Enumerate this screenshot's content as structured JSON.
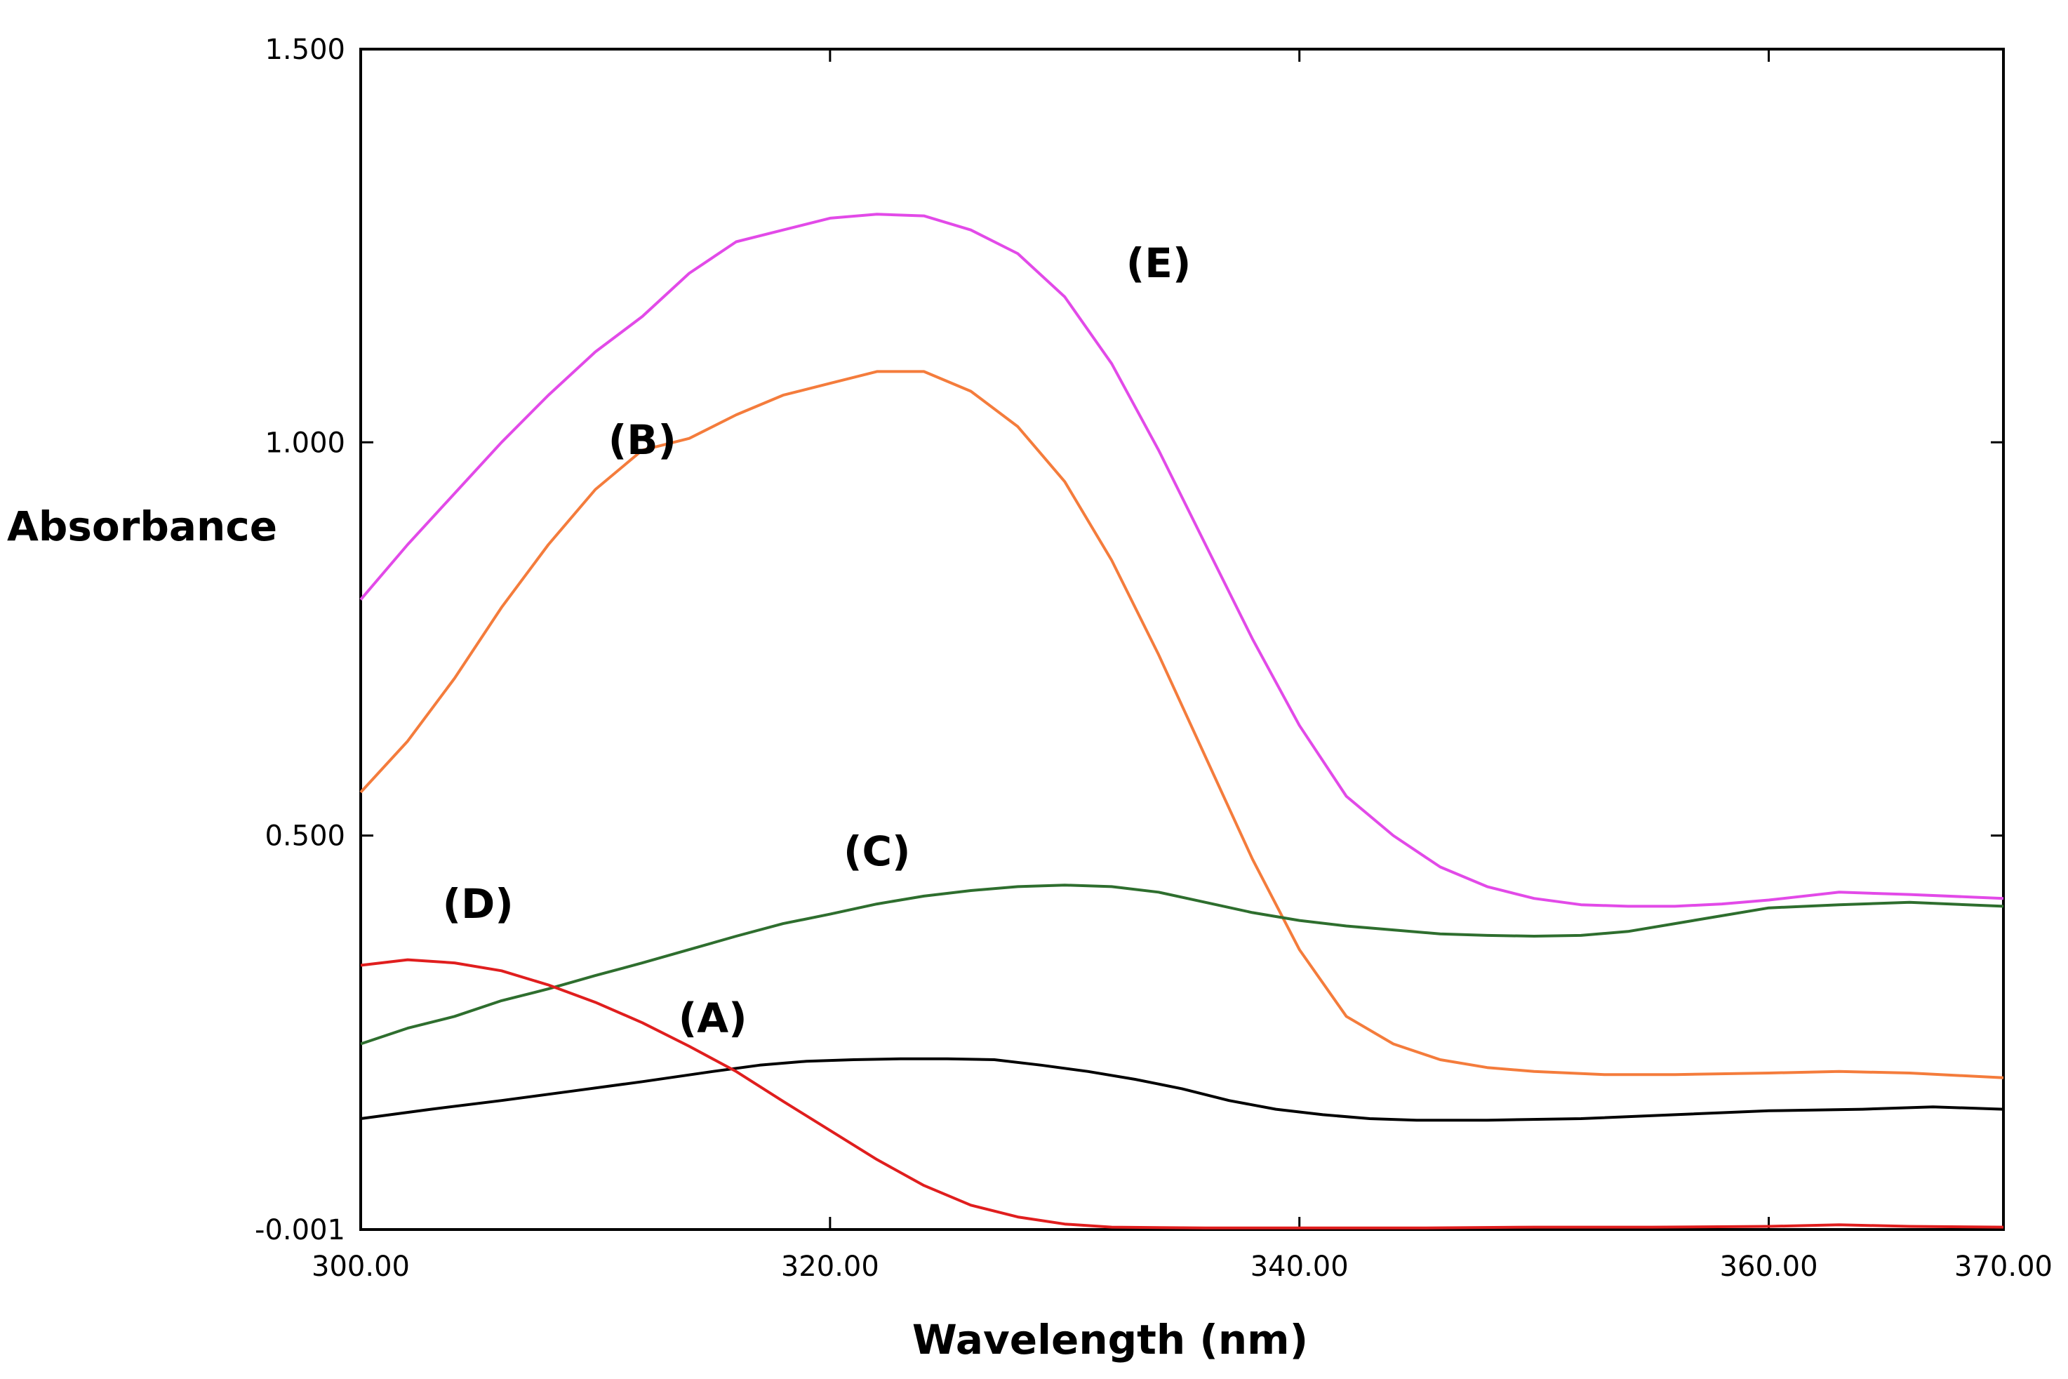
{
  "chart_data": {
    "type": "line",
    "title": "",
    "xlabel": "Wavelength (nm)",
    "ylabel": "Absorbance",
    "xlim": [
      300,
      370
    ],
    "ylim": [
      -0.001,
      1.5
    ],
    "x_ticks": [
      300,
      320,
      340,
      360,
      370
    ],
    "x_tick_labels": [
      "300.00",
      "320.00",
      "340.00",
      "360.00",
      "370.00"
    ],
    "y_ticks": [
      -0.001,
      0.5,
      1.0,
      1.5
    ],
    "y_tick_labels": [
      "-0.001",
      "0.500",
      "1.000",
      "1.500"
    ],
    "grid": false,
    "series": [
      {
        "name": "(A)",
        "color": "#000000",
        "label_at": [
          315,
          0.25
        ],
        "points": [
          [
            300,
            0.14
          ],
          [
            303,
            0.152
          ],
          [
            306,
            0.163
          ],
          [
            309,
            0.175
          ],
          [
            312,
            0.187
          ],
          [
            315,
            0.2
          ],
          [
            317,
            0.208
          ],
          [
            319,
            0.213
          ],
          [
            321,
            0.215
          ],
          [
            323,
            0.216
          ],
          [
            325,
            0.216
          ],
          [
            327,
            0.215
          ],
          [
            329,
            0.208
          ],
          [
            331,
            0.2
          ],
          [
            333,
            0.19
          ],
          [
            335,
            0.178
          ],
          [
            337,
            0.163
          ],
          [
            339,
            0.152
          ],
          [
            341,
            0.145
          ],
          [
            343,
            0.14
          ],
          [
            345,
            0.138
          ],
          [
            348,
            0.138
          ],
          [
            352,
            0.14
          ],
          [
            356,
            0.145
          ],
          [
            360,
            0.15
          ],
          [
            364,
            0.152
          ],
          [
            367,
            0.155
          ],
          [
            370,
            0.152
          ]
        ]
      },
      {
        "name": "(B)",
        "color": "#F47C3C",
        "label_at": [
          312,
          0.985
        ],
        "points": [
          [
            300,
            0.555
          ],
          [
            302,
            0.62
          ],
          [
            304,
            0.7
          ],
          [
            306,
            0.79
          ],
          [
            308,
            0.87
          ],
          [
            310,
            0.94
          ],
          [
            312,
            0.99
          ],
          [
            314,
            1.005
          ],
          [
            316,
            1.035
          ],
          [
            318,
            1.06
          ],
          [
            320,
            1.075
          ],
          [
            322,
            1.09
          ],
          [
            324,
            1.09
          ],
          [
            326,
            1.065
          ],
          [
            328,
            1.02
          ],
          [
            330,
            0.95
          ],
          [
            332,
            0.85
          ],
          [
            334,
            0.73
          ],
          [
            336,
            0.6
          ],
          [
            338,
            0.47
          ],
          [
            340,
            0.355
          ],
          [
            342,
            0.27
          ],
          [
            344,
            0.235
          ],
          [
            346,
            0.215
          ],
          [
            348,
            0.205
          ],
          [
            350,
            0.2
          ],
          [
            353,
            0.196
          ],
          [
            356,
            0.196
          ],
          [
            360,
            0.198
          ],
          [
            363,
            0.2
          ],
          [
            366,
            0.198
          ],
          [
            370,
            0.192
          ]
        ]
      },
      {
        "name": "(C)",
        "color": "#2E6E2E",
        "label_at": [
          322,
          0.462
        ],
        "points": [
          [
            300,
            0.235
          ],
          [
            302,
            0.255
          ],
          [
            304,
            0.27
          ],
          [
            306,
            0.29
          ],
          [
            308,
            0.305
          ],
          [
            310,
            0.322
          ],
          [
            312,
            0.338
          ],
          [
            314,
            0.355
          ],
          [
            316,
            0.372
          ],
          [
            318,
            0.388
          ],
          [
            320,
            0.4
          ],
          [
            322,
            0.413
          ],
          [
            324,
            0.423
          ],
          [
            326,
            0.43
          ],
          [
            328,
            0.435
          ],
          [
            330,
            0.437
          ],
          [
            332,
            0.435
          ],
          [
            334,
            0.428
          ],
          [
            336,
            0.415
          ],
          [
            338,
            0.402
          ],
          [
            340,
            0.392
          ],
          [
            342,
            0.385
          ],
          [
            344,
            0.38
          ],
          [
            346,
            0.375
          ],
          [
            348,
            0.373
          ],
          [
            350,
            0.372
          ],
          [
            352,
            0.373
          ],
          [
            354,
            0.378
          ],
          [
            356,
            0.388
          ],
          [
            358,
            0.398
          ],
          [
            360,
            0.408
          ],
          [
            363,
            0.412
          ],
          [
            366,
            0.415
          ],
          [
            370,
            0.41
          ]
        ]
      },
      {
        "name": "(D)",
        "color": "#E01E1E",
        "label_at": [
          305,
          0.395
        ],
        "points": [
          [
            300,
            0.335
          ],
          [
            302,
            0.342
          ],
          [
            304,
            0.338
          ],
          [
            306,
            0.328
          ],
          [
            308,
            0.31
          ],
          [
            310,
            0.288
          ],
          [
            312,
            0.262
          ],
          [
            314,
            0.232
          ],
          [
            316,
            0.2
          ],
          [
            318,
            0.162
          ],
          [
            320,
            0.125
          ],
          [
            322,
            0.088
          ],
          [
            324,
            0.055
          ],
          [
            326,
            0.03
          ],
          [
            328,
            0.015
          ],
          [
            330,
            0.006
          ],
          [
            332,
            0.002
          ],
          [
            336,
            0.001
          ],
          [
            340,
            0.001
          ],
          [
            345,
            0.001
          ],
          [
            350,
            0.002
          ],
          [
            355,
            0.002
          ],
          [
            360,
            0.003
          ],
          [
            363,
            0.005
          ],
          [
            366,
            0.003
          ],
          [
            370,
            0.002
          ]
        ]
      },
      {
        "name": "(E)",
        "color": "#E24AE8",
        "label_at": [
          334,
          1.21
        ],
        "points": [
          [
            300,
            0.8
          ],
          [
            302,
            0.87
          ],
          [
            304,
            0.935
          ],
          [
            306,
            1.0
          ],
          [
            308,
            1.06
          ],
          [
            310,
            1.115
          ],
          [
            312,
            1.16
          ],
          [
            314,
            1.215
          ],
          [
            316,
            1.255
          ],
          [
            318,
            1.27
          ],
          [
            320,
            1.285
          ],
          [
            322,
            1.29
          ],
          [
            324,
            1.288
          ],
          [
            326,
            1.27
          ],
          [
            328,
            1.24
          ],
          [
            330,
            1.185
          ],
          [
            332,
            1.1
          ],
          [
            334,
            0.99
          ],
          [
            336,
            0.87
          ],
          [
            338,
            0.75
          ],
          [
            340,
            0.64
          ],
          [
            342,
            0.55
          ],
          [
            344,
            0.5
          ],
          [
            346,
            0.46
          ],
          [
            348,
            0.435
          ],
          [
            350,
            0.42
          ],
          [
            352,
            0.412
          ],
          [
            354,
            0.41
          ],
          [
            356,
            0.41
          ],
          [
            358,
            0.413
          ],
          [
            360,
            0.418
          ],
          [
            363,
            0.428
          ],
          [
            366,
            0.425
          ],
          [
            370,
            0.42
          ]
        ]
      }
    ]
  }
}
